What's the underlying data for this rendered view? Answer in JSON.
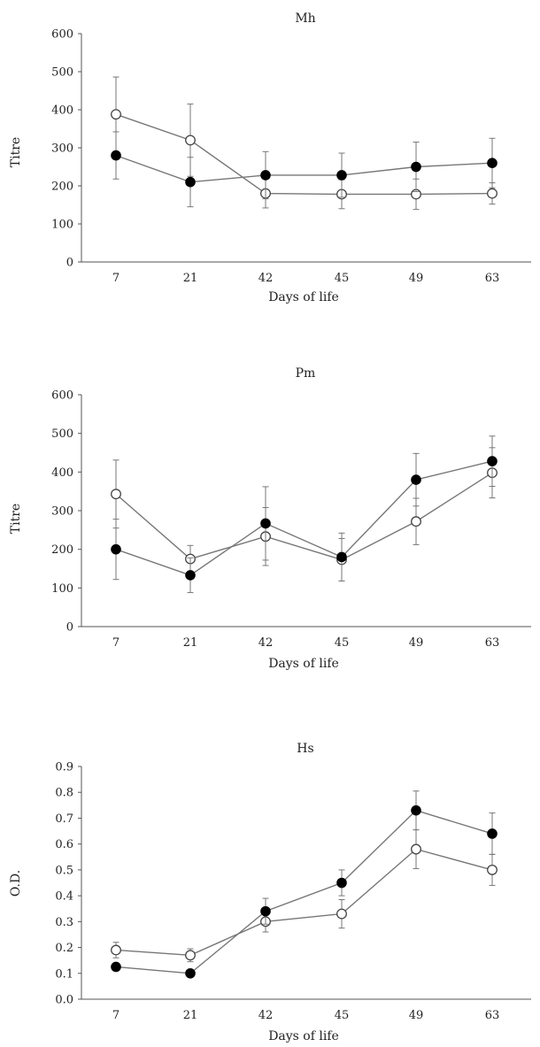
{
  "figure": {
    "background": "#ffffff",
    "axis_color": "#555555",
    "line_color": "#777777",
    "filled_marker_color": "#000000",
    "open_marker_fill": "#ffffff",
    "open_marker_stroke": "#444444"
  },
  "chart_data": [
    {
      "type": "line",
      "title": "Mh",
      "xlabel": "Days of life",
      "ylabel": "Titre",
      "categories": [
        "7",
        "21",
        "42",
        "45",
        "49",
        "63"
      ],
      "ylim": [
        0,
        600
      ],
      "yticks": [
        0,
        100,
        200,
        300,
        400,
        500,
        600
      ],
      "ytick_labels": [
        "0",
        "100",
        "200",
        "300",
        "400",
        "500",
        "600"
      ],
      "grid": false,
      "series": [
        {
          "name": "open",
          "marker": "open",
          "values": [
            388,
            320,
            180,
            178,
            178,
            180
          ],
          "errors": [
            98,
            95,
            38,
            38,
            40,
            28
          ]
        },
        {
          "name": "filled",
          "marker": "filled",
          "values": [
            280,
            210,
            228,
            228,
            250,
            260
          ],
          "errors": [
            62,
            65,
            62,
            58,
            65,
            65
          ]
        }
      ]
    },
    {
      "type": "line",
      "title": "Pm",
      "xlabel": "Days of life",
      "ylabel": "Titre",
      "categories": [
        "7",
        "21",
        "42",
        "45",
        "49",
        "63"
      ],
      "ylim": [
        0,
        600
      ],
      "yticks": [
        0,
        100,
        200,
        300,
        400,
        500,
        600
      ],
      "ytick_labels": [
        "0",
        "100",
        "200",
        "300",
        "400",
        "500",
        "600"
      ],
      "grid": false,
      "series": [
        {
          "name": "open",
          "marker": "open",
          "values": [
            343,
            175,
            233,
            173,
            272,
            398
          ],
          "errors": [
            88,
            35,
            75,
            55,
            60,
            65
          ]
        },
        {
          "name": "filled",
          "marker": "filled",
          "values": [
            200,
            133,
            267,
            180,
            380,
            428
          ],
          "errors": [
            78,
            45,
            95,
            62,
            68,
            65
          ]
        }
      ]
    },
    {
      "type": "line",
      "title": "Hs",
      "xlabel": "Days of life",
      "ylabel": "O.D.",
      "categories": [
        "7",
        "21",
        "42",
        "45",
        "49",
        "63"
      ],
      "ylim": [
        0,
        0.9
      ],
      "yticks": [
        0,
        0.1,
        0.2,
        0.3,
        0.4,
        0.5,
        0.6,
        0.7,
        0.8,
        0.9
      ],
      "ytick_labels": [
        "0.0",
        "0.1",
        "0.2",
        "0.3",
        "0.4",
        "0.5",
        "0.6",
        "0.7",
        "0.8",
        "0.9"
      ],
      "grid": false,
      "series": [
        {
          "name": "open",
          "marker": "open",
          "values": [
            0.19,
            0.17,
            0.3,
            0.33,
            0.58,
            0.5
          ],
          "errors": [
            0.03,
            0.025,
            0.04,
            0.055,
            0.075,
            0.06
          ]
        },
        {
          "name": "filled",
          "marker": "filled",
          "values": [
            0.125,
            0.1,
            0.34,
            0.45,
            0.73,
            0.64
          ],
          "errors": [
            0.01,
            0.01,
            0.05,
            0.05,
            0.075,
            0.08
          ]
        }
      ]
    }
  ]
}
